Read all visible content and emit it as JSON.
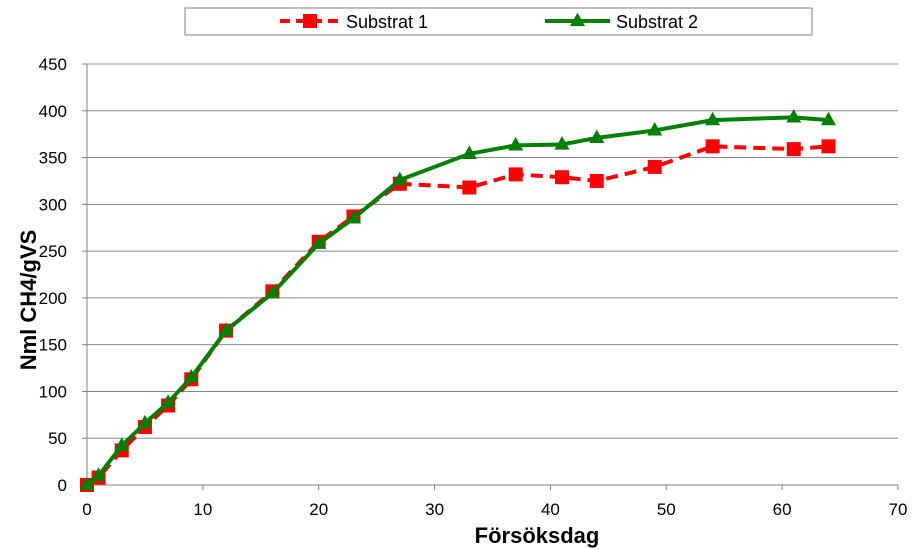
{
  "chart_data": {
    "type": "line",
    "xlabel": "Försöksdag",
    "ylabel": "Nml CH4/gVS",
    "xlim": [
      0,
      70
    ],
    "ylim": [
      0,
      450
    ],
    "xticks": [
      0,
      10,
      20,
      30,
      40,
      50,
      60,
      70
    ],
    "yticks": [
      0,
      50,
      100,
      150,
      200,
      250,
      300,
      350,
      400,
      450
    ],
    "grid": "horizontal",
    "legend_position": "top",
    "series": [
      {
        "name": "Substrat 1",
        "color": "#ff0000",
        "line_style": "dashed",
        "marker": "square",
        "x": [
          0,
          1,
          3,
          5,
          7,
          9,
          12,
          16,
          20,
          23,
          27,
          33,
          37,
          41,
          44,
          49,
          54,
          61,
          64
        ],
        "y": [
          0,
          8,
          37,
          62,
          85,
          113,
          165,
          207,
          260,
          287,
          322,
          318,
          332,
          329,
          325,
          340,
          362,
          359,
          362
        ]
      },
      {
        "name": "Substrat 2",
        "color": "#008000",
        "line_style": "solid",
        "marker": "triangle",
        "x": [
          0,
          1,
          3,
          5,
          7,
          9,
          12,
          16,
          20,
          23,
          27,
          33,
          37,
          41,
          44,
          49,
          54,
          61,
          64
        ],
        "y": [
          0,
          10,
          42,
          66,
          88,
          115,
          165,
          205,
          258,
          285,
          326,
          354,
          363,
          364,
          371,
          379,
          390,
          393,
          390
        ]
      }
    ]
  }
}
